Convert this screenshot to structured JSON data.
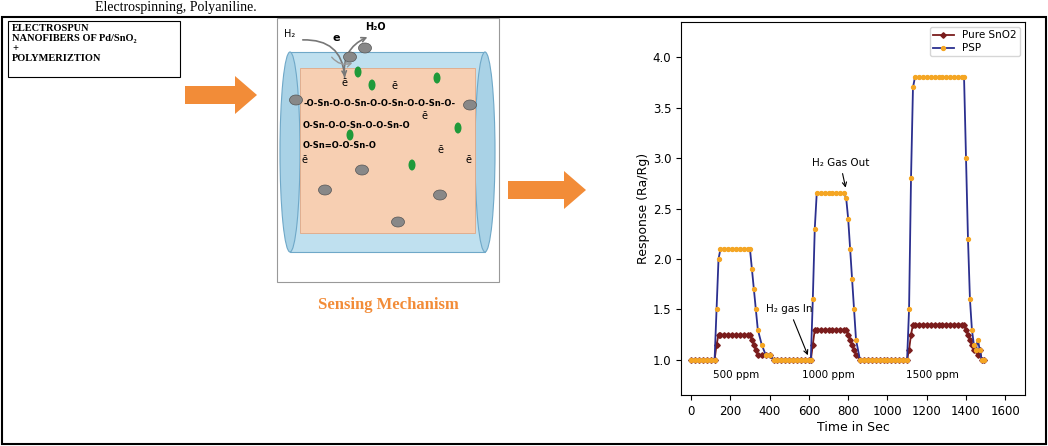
{
  "top_caption": "Electrospinning, Polyaniline.",
  "text_box": {
    "lines": [
      "ELECTROSPUN",
      "NANOFIBERS OF Pd/SnO₂",
      "+",
      "POLYMERIZTION"
    ]
  },
  "diagram": {
    "gas": "H₂",
    "electron": "e",
    "product": "H₂O",
    "electrons": [
      "ē",
      "ē",
      "ē",
      "ē",
      "ē",
      "ē"
    ],
    "chains": [
      "-O-Sn-O-O-Sn-O-O-Sn-O-O-Sn-O-",
      "O-Sn-O-O-Sn-O-O-Sn-O",
      "O-Sn=O-O-Sn-O"
    ],
    "caption": "Sensing Mechanism"
  },
  "chart_data": {
    "type": "line",
    "x_label": "Time in Sec",
    "y_label": "Response (Ra/Rg)",
    "x": [
      0,
      20,
      40,
      60,
      80,
      100,
      120,
      130,
      140,
      150,
      170,
      190,
      210,
      230,
      250,
      270,
      290,
      300,
      310,
      320,
      330,
      340,
      360,
      380,
      400,
      420,
      440,
      460,
      480,
      500,
      520,
      540,
      560,
      580,
      600,
      610,
      620,
      630,
      640,
      660,
      680,
      700,
      720,
      740,
      760,
      780,
      790,
      800,
      810,
      820,
      830,
      840,
      860,
      880,
      900,
      920,
      940,
      960,
      980,
      1000,
      1020,
      1040,
      1060,
      1080,
      1100,
      1110,
      1120,
      1130,
      1140,
      1160,
      1180,
      1200,
      1220,
      1240,
      1260,
      1280,
      1300,
      1320,
      1340,
      1360,
      1380,
      1390,
      1400,
      1410,
      1420,
      1430,
      1440,
      1450,
      1460,
      1470,
      1480,
      1490
    ],
    "series": [
      {
        "name": "Pure SnO2",
        "color": "#7a1c1c",
        "marker": "diamond",
        "line_style": "solid",
        "values": [
          1.0,
          1.0,
          1.0,
          1.0,
          1.0,
          1.0,
          1.0,
          1.15,
          1.25,
          1.25,
          1.25,
          1.25,
          1.25,
          1.25,
          1.25,
          1.25,
          1.25,
          1.25,
          1.2,
          1.15,
          1.1,
          1.05,
          1.05,
          1.05,
          1.05,
          1.0,
          1.0,
          1.0,
          1.0,
          1.0,
          1.0,
          1.0,
          1.0,
          1.0,
          1.0,
          1.0,
          1.15,
          1.3,
          1.3,
          1.3,
          1.3,
          1.3,
          1.3,
          1.3,
          1.3,
          1.3,
          1.3,
          1.25,
          1.2,
          1.15,
          1.1,
          1.05,
          1.0,
          1.0,
          1.0,
          1.0,
          1.0,
          1.0,
          1.0,
          1.0,
          1.0,
          1.0,
          1.0,
          1.0,
          1.0,
          1.1,
          1.25,
          1.35,
          1.35,
          1.35,
          1.35,
          1.35,
          1.35,
          1.35,
          1.35,
          1.35,
          1.35,
          1.35,
          1.35,
          1.35,
          1.35,
          1.35,
          1.3,
          1.25,
          1.2,
          1.15,
          1.1,
          1.1,
          1.05,
          1.1,
          1.0,
          1.0
        ]
      },
      {
        "name": "PSP",
        "color": "#f5a623",
        "marker": "circle",
        "line_style": "solid",
        "values": [
          1.0,
          1.0,
          1.0,
          1.0,
          1.0,
          1.0,
          1.0,
          1.5,
          2.0,
          2.1,
          2.1,
          2.1,
          2.1,
          2.1,
          2.1,
          2.1,
          2.1,
          2.1,
          1.9,
          1.7,
          1.5,
          1.3,
          1.15,
          1.05,
          1.05,
          1.0,
          1.0,
          1.0,
          1.0,
          1.0,
          1.0,
          1.0,
          1.0,
          1.0,
          1.0,
          1.0,
          1.6,
          2.3,
          2.65,
          2.65,
          2.65,
          2.65,
          2.65,
          2.65,
          2.65,
          2.65,
          2.6,
          2.4,
          2.1,
          1.8,
          1.5,
          1.2,
          1.0,
          1.0,
          1.0,
          1.0,
          1.0,
          1.0,
          1.0,
          1.0,
          1.0,
          1.0,
          1.0,
          1.0,
          1.0,
          1.5,
          2.8,
          3.7,
          3.8,
          3.8,
          3.8,
          3.8,
          3.8,
          3.8,
          3.8,
          3.8,
          3.8,
          3.8,
          3.8,
          3.8,
          3.8,
          3.8,
          3.0,
          2.2,
          1.6,
          1.3,
          1.15,
          1.1,
          1.2,
          1.1,
          1.0,
          1.0
        ]
      }
    ],
    "xlim": [
      -50,
      1700
    ],
    "xticks": [
      0,
      200,
      400,
      600,
      800,
      1000,
      1200,
      1400,
      1600
    ],
    "ylim": [
      0.65,
      4.35
    ],
    "yticks": [
      {
        "value": 1.0,
        "label": "1.0"
      },
      {
        "value": 1.5,
        "label": "1.5"
      },
      {
        "value": 2.0,
        "label": "2.0"
      },
      {
        "value": 2.5,
        "label": "2.5"
      },
      {
        "value": 3.0,
        "label": "3.0"
      },
      {
        "value": 3.5,
        "label": "3.5"
      },
      {
        "value": 4.0,
        "label": "4.0"
      }
    ],
    "grid": false,
    "legend": "upper right",
    "annotations": [
      {
        "text": "H₂ Gas Out",
        "x": 760,
        "y": 2.95,
        "arrow_x": 790,
        "arrow_y": 2.68
      },
      {
        "text": "H₂ gas In",
        "x": 500,
        "y": 1.5,
        "arrow_x": 600,
        "arrow_y": 1.02
      },
      {
        "text": "500 ppm",
        "x": 230,
        "y": 0.85
      },
      {
        "text": "1000 ppm",
        "x": 700,
        "y": 0.85
      },
      {
        "text": "1500 ppm",
        "x": 1230,
        "y": 0.85
      }
    ]
  }
}
